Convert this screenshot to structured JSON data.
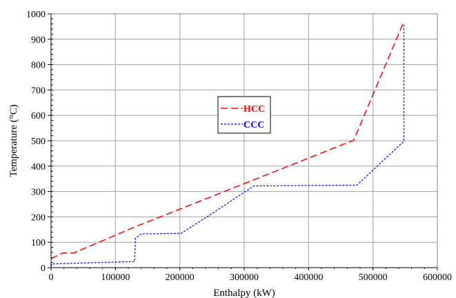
{
  "chart_data": {
    "type": "line",
    "xlabel": "Enthalpy (kW)",
    "ylabel": "Temperature (°C)",
    "xlim": [
      0,
      600000
    ],
    "ylim": [
      0,
      1000
    ],
    "x_ticks": [
      "0",
      "100000",
      "200000",
      "300000",
      "400000",
      "500000",
      "600000"
    ],
    "y_ticks": [
      "0",
      "100",
      "200",
      "300",
      "400",
      "500",
      "600",
      "700",
      "800",
      "900",
      "1000"
    ],
    "grid": true,
    "legend_position": "center",
    "series": [
      {
        "name": "HCC",
        "color": "#ff0000",
        "style": "long-dash",
        "points": [
          [
            0,
            35
          ],
          [
            18000,
            58
          ],
          [
            35000,
            58
          ],
          [
            130000,
            160
          ],
          [
            470000,
            502
          ],
          [
            548000,
            970
          ]
        ]
      },
      {
        "name": "CCC",
        "color": "#0000ff",
        "style": "short-dash",
        "points": [
          [
            0,
            5
          ],
          [
            2000,
            15
          ],
          [
            130000,
            24
          ],
          [
            131000,
            115
          ],
          [
            140000,
            133
          ],
          [
            202000,
            135
          ],
          [
            245000,
            205
          ],
          [
            315000,
            322
          ],
          [
            475000,
            325
          ],
          [
            548000,
            498
          ],
          [
            548000,
            962
          ]
        ]
      }
    ]
  }
}
